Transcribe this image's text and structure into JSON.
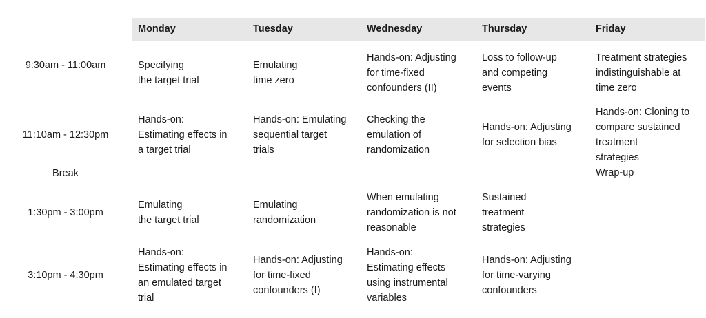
{
  "days": [
    "Monday",
    "Tuesday",
    "Wednesday",
    "Thursday",
    "Friday"
  ],
  "rows": [
    {
      "time": "9:30am - 11:00am",
      "cells": [
        [
          "Specifying",
          "the target trial"
        ],
        [
          "Emulating",
          "time zero"
        ],
        [
          "Hands-on: Adjusting",
          "for time-fixed",
          "confounders (II)"
        ],
        [
          "Loss to follow-up",
          "and competing",
          "events"
        ],
        [
          "Treatment strategies",
          "indistinguishable at",
          "time zero"
        ]
      ]
    },
    {
      "time": "11:10am - 12:30pm",
      "cells": [
        [
          "Hands-on:",
          "Estimating effects in",
          "a target trial"
        ],
        [
          "Hands-on: Emulating",
          "sequential target",
          "trials"
        ],
        [
          "Checking the",
          "emulation of",
          "randomization"
        ],
        [
          "Hands-on: Adjusting",
          "for selection bias"
        ],
        [
          "Hands-on: Cloning to",
          "compare sustained",
          "treatment",
          "strategies",
          "Wrap-up"
        ]
      ]
    },
    {
      "time": "Break",
      "cells": [
        [],
        [],
        [],
        [],
        []
      ]
    },
    {
      "time": "1:30pm - 3:00pm",
      "cells": [
        [
          "Emulating",
          "the target trial"
        ],
        [
          "Emulating",
          "randomization"
        ],
        [
          "When emulating",
          "randomization is not",
          "reasonable"
        ],
        [
          "Sustained",
          "treatment",
          "strategies"
        ],
        []
      ]
    },
    {
      "time": "3:10pm - 4:30pm",
      "cells": [
        [
          "Hands-on:",
          "Estimating effects in",
          "an emulated target",
          "trial"
        ],
        [
          "Hands-on: Adjusting",
          "for time-fixed",
          "confounders (I)"
        ],
        [
          "Hands-on:",
          "Estimating effects",
          "using instrumental",
          "variables"
        ],
        [
          "Hands-on: Adjusting",
          "for time-varying",
          "confounders"
        ],
        []
      ]
    }
  ]
}
